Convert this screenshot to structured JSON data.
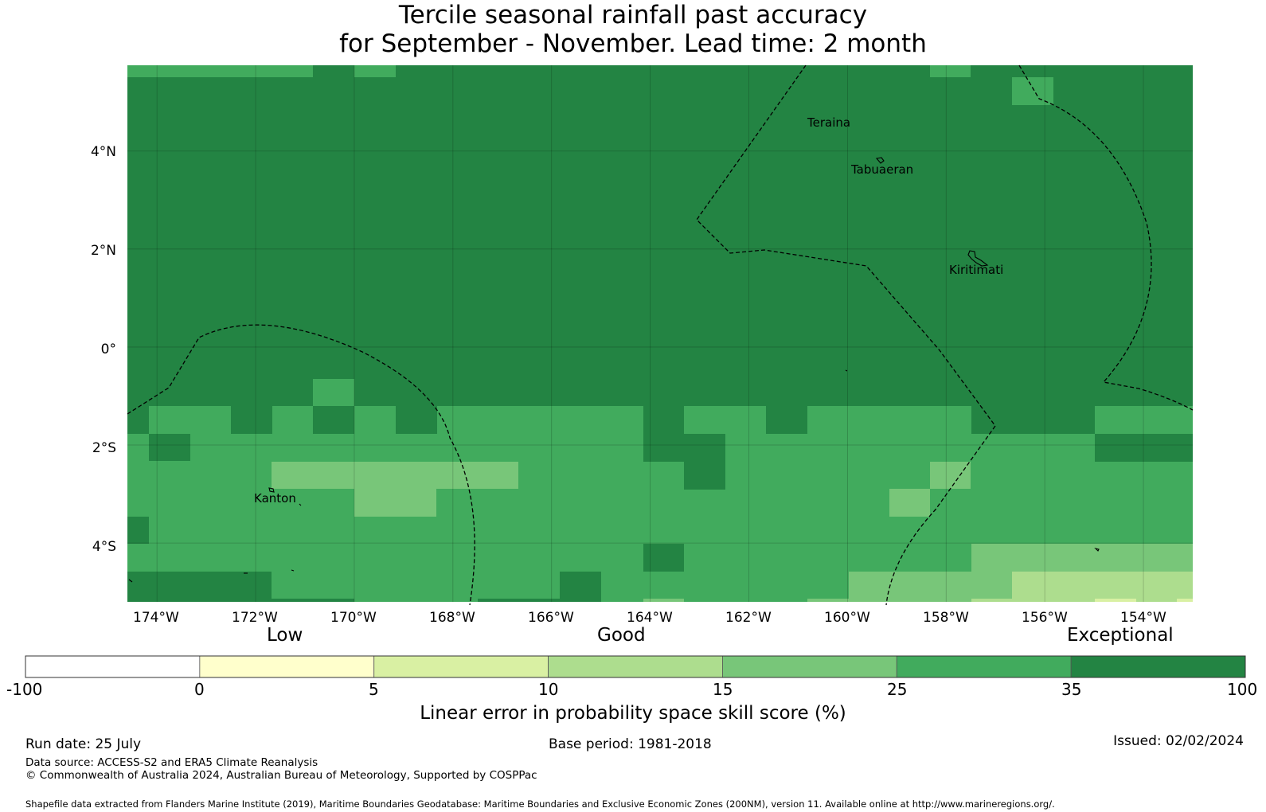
{
  "title": {
    "line1": "Tercile seasonal rainfall past accuracy",
    "line2": "for September - November. Lead time: 2 month"
  },
  "map": {
    "lon_range": [
      -174.6,
      -153.0
    ],
    "lat_range": [
      -5.2,
      5.75
    ],
    "cell_deg": 0.833,
    "lat_ticks": [
      "4°N",
      "2°N",
      "0°",
      "2°S",
      "4°S"
    ],
    "lon_ticks": [
      "174°W",
      "172°W",
      "170°W",
      "168°W",
      "166°W",
      "164°W",
      "162°W",
      "160°W",
      "158°W",
      "156°W",
      "154°W"
    ],
    "places": [
      "Teraina",
      "Tabuaeran",
      "Kiritimati",
      "Kanton"
    ]
  },
  "legend": {
    "categories": [
      "Low",
      "Good",
      "Exceptional"
    ],
    "ticks": [
      "-100",
      "0",
      "5",
      "10",
      "15",
      "25",
      "35",
      "100"
    ],
    "bin_colors": [
      "#ffffff",
      "#ffffcc",
      "#d9f0a3",
      "#addd8e",
      "#78c679",
      "#41ab5d",
      "#238443"
    ],
    "title": "Linear error in probability space skill score (%)"
  },
  "colors": {
    "exceptional": "#238443",
    "good_high": "#41ab5d",
    "good": "#78c679",
    "low_high": "#addd8e",
    "low": "#d9f0a3"
  },
  "info": {
    "run_date": "Run date: 25 July",
    "base_period": "Base period: 1981-2018",
    "issued": "Issued: 02/02/2024",
    "data_source": "Data source: ACCESS-S2 and ERA5 Climate Reanalysis",
    "copyright": "© Commonwealth of Australia 2024, Australian Bureau of Meteorology, Supported by COSPPac",
    "shapefile": "Shapefile data extracted from Flanders Marine Institute (2019), Maritime Boundaries Geodatabase: Maritime Boundaries and Exclusive Economic Zones (200NM), version 11. Available online at http://www.marineregions.org/."
  }
}
